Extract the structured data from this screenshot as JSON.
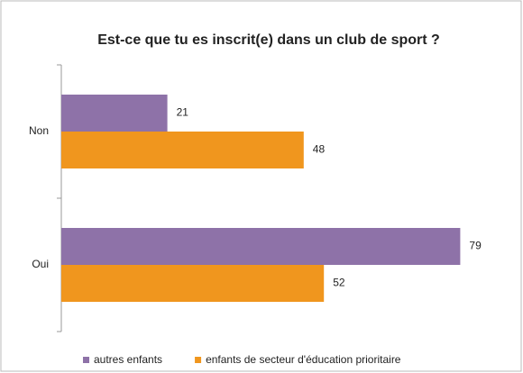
{
  "chart_data": {
    "type": "barh",
    "title": "Est-ce que tu es inscrit(e) dans un club de sport ?",
    "categories": [
      "Non",
      "Oui"
    ],
    "series": [
      {
        "name": "autres enfants",
        "color": "#8e72a8",
        "values": [
          21,
          79
        ]
      },
      {
        "name": "enfants de secteur d'éducation prioritaire",
        "color": "#f0961e",
        "values": [
          48,
          52
        ]
      }
    ],
    "xlim": [
      0,
      90
    ]
  }
}
